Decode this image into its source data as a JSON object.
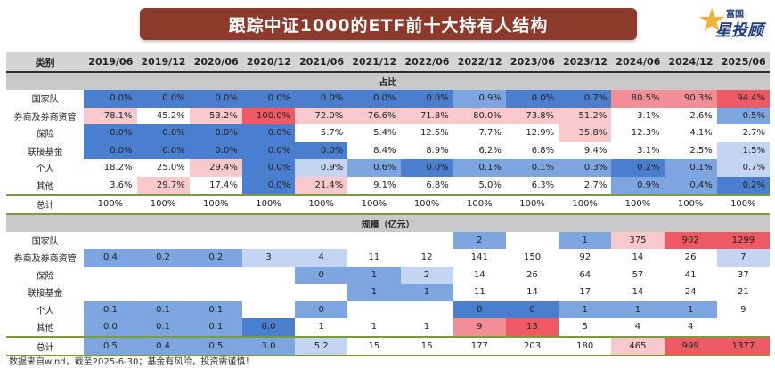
{
  "title": "跟踪中证1000的ETF前十大持有人结构",
  "logo": {
    "top": "富国",
    "main": "星投顾",
    "icon": "star-icon"
  },
  "header": {
    "label_col": "类别",
    "columns": [
      "2019/06",
      "2019/12",
      "2020/06",
      "2020/12",
      "2021/06",
      "2021/12",
      "2022/06",
      "2022/12",
      "2023/06",
      "2023/12",
      "2024/06",
      "2024/12",
      "2025/06"
    ]
  },
  "colors": {
    "blue_strong": "#4a7fd0",
    "blue_mid": "#7da6e0",
    "blue_light": "#c3d5f1",
    "white": "#ffffff",
    "red_light": "#f7c9cc",
    "red_mid": "#f28f96",
    "red_strong": "#ee5a64"
  },
  "share_section": {
    "title": "占比",
    "rows": [
      {
        "label": "国家队",
        "values": [
          "0.0%",
          "0.0%",
          "0.0%",
          "0.0%",
          "0.0%",
          "0.0%",
          "0.0%",
          "0.9%",
          "0.0%",
          "0.7%",
          "80.5%",
          "90.3%",
          "94.4%"
        ],
        "colors": [
          "blue_strong",
          "blue_strong",
          "blue_strong",
          "blue_strong",
          "blue_strong",
          "blue_strong",
          "blue_strong",
          "blue_mid",
          "blue_strong",
          "blue_strong",
          "red_mid",
          "red_mid",
          "red_strong"
        ]
      },
      {
        "label": "券商及券商资管",
        "values": [
          "78.1%",
          "45.2%",
          "53.2%",
          "100.0%",
          "72.0%",
          "76.6%",
          "71.8%",
          "80.0%",
          "73.8%",
          "51.2%",
          "3.1%",
          "2.6%",
          "0.5%"
        ],
        "colors": [
          "red_light",
          "white",
          "red_light",
          "red_strong",
          "red_light",
          "red_light",
          "red_light",
          "red_light",
          "red_light",
          "red_light",
          "white",
          "white",
          "blue_mid"
        ]
      },
      {
        "label": "保险",
        "values": [
          "0.0%",
          "0.0%",
          "0.0%",
          "0.0%",
          "5.7%",
          "5.4%",
          "12.5%",
          "7.7%",
          "12.9%",
          "35.8%",
          "12.3%",
          "4.1%",
          "2.7%"
        ],
        "colors": [
          "blue_strong",
          "blue_strong",
          "blue_strong",
          "blue_strong",
          "white",
          "white",
          "white",
          "white",
          "white",
          "red_light",
          "white",
          "white",
          "white"
        ]
      },
      {
        "label": "联接基金",
        "values": [
          "0.0%",
          "0.0%",
          "0.0%",
          "0.0%",
          "0.0%",
          "8.4%",
          "8.9%",
          "6.2%",
          "6.8%",
          "9.4%",
          "3.1%",
          "2.5%",
          "1.5%"
        ],
        "colors": [
          "blue_strong",
          "blue_strong",
          "blue_strong",
          "blue_strong",
          "blue_strong",
          "white",
          "white",
          "white",
          "white",
          "white",
          "white",
          "white",
          "blue_light"
        ]
      },
      {
        "label": "个人",
        "values": [
          "18.2%",
          "25.0%",
          "29.4%",
          "0.0%",
          "0.9%",
          "0.6%",
          "0.0%",
          "0.1%",
          "0.1%",
          "0.3%",
          "0.2%",
          "0.1%",
          "0.7%"
        ],
        "colors": [
          "white",
          "white",
          "red_light",
          "blue_strong",
          "blue_light",
          "blue_mid",
          "blue_strong",
          "blue_mid",
          "blue_mid",
          "blue_mid",
          "blue_strong",
          "blue_mid",
          "blue_light"
        ]
      },
      {
        "label": "其他",
        "values": [
          "3.6%",
          "29.7%",
          "17.4%",
          "0.0%",
          "21.4%",
          "9.1%",
          "6.8%",
          "5.0%",
          "6.3%",
          "2.7%",
          "0.9%",
          "0.4%",
          "0.2%"
        ],
        "colors": [
          "white",
          "red_light",
          "white",
          "blue_strong",
          "red_light",
          "white",
          "white",
          "white",
          "white",
          "white",
          "blue_mid",
          "blue_mid",
          "blue_strong"
        ]
      }
    ],
    "total": {
      "label": "总计",
      "values": [
        "100%",
        "100%",
        "100%",
        "100%",
        "100%",
        "100%",
        "100%",
        "100%",
        "100%",
        "100%",
        "100%",
        "100%",
        "100%"
      ]
    }
  },
  "size_section": {
    "title": "规模（亿元）",
    "rows": [
      {
        "label": "国家队",
        "values": [
          "",
          "",
          "",
          "",
          "",
          "",
          "",
          "2",
          "",
          "1",
          "375",
          "902",
          "1299"
        ],
        "colors": [
          "white",
          "white",
          "white",
          "white",
          "white",
          "white",
          "white",
          "blue_mid",
          "white",
          "blue_mid",
          "red_light",
          "red_strong",
          "red_strong"
        ]
      },
      {
        "label": "券商及券商资管",
        "values": [
          "0.4",
          "0.2",
          "0.2",
          "3",
          "4",
          "11",
          "12",
          "141",
          "150",
          "92",
          "14",
          "26",
          "7"
        ],
        "colors": [
          "blue_mid",
          "blue_mid",
          "blue_mid",
          "blue_light",
          "blue_light",
          "white",
          "white",
          "white",
          "white",
          "white",
          "white",
          "white",
          "blue_light"
        ]
      },
      {
        "label": "保险",
        "values": [
          "",
          "",
          "",
          "",
          "0",
          "1",
          "2",
          "14",
          "26",
          "64",
          "57",
          "41",
          "37"
        ],
        "colors": [
          "white",
          "white",
          "white",
          "white",
          "blue_mid",
          "blue_mid",
          "blue_light",
          "white",
          "white",
          "white",
          "white",
          "white",
          "white"
        ]
      },
      {
        "label": "联接基金",
        "values": [
          "",
          "",
          "",
          "",
          "",
          "1",
          "1",
          "11",
          "14",
          "17",
          "14",
          "24",
          "21"
        ],
        "colors": [
          "white",
          "white",
          "white",
          "white",
          "white",
          "blue_mid",
          "blue_mid",
          "white",
          "white",
          "white",
          "white",
          "white",
          "white"
        ]
      },
      {
        "label": "个人",
        "values": [
          "0.1",
          "0.1",
          "0.1",
          "",
          "0",
          "",
          "",
          "0",
          "0",
          "1",
          "1",
          "1",
          "9"
        ],
        "colors": [
          "blue_mid",
          "blue_mid",
          "blue_mid",
          "white",
          "blue_mid",
          "white",
          "white",
          "blue_strong",
          "blue_strong",
          "blue_mid",
          "blue_mid",
          "blue_mid",
          "white"
        ]
      },
      {
        "label": "其他",
        "values": [
          "0.0",
          "0.1",
          "0.1",
          "0.0",
          "1",
          "1",
          "1",
          "9",
          "13",
          "5",
          "4",
          "4",
          ""
        ],
        "colors": [
          "blue_mid",
          "blue_mid",
          "blue_mid",
          "blue_strong",
          "white",
          "white",
          "white",
          "red_mid",
          "red_strong",
          "white",
          "white",
          "white",
          "white"
        ]
      }
    ],
    "total": {
      "label": "总计",
      "values": [
        "0.5",
        "0.4",
        "0.5",
        "3.0",
        "5.2",
        "15",
        "16",
        "177",
        "203",
        "180",
        "465",
        "999",
        "1377"
      ],
      "colors": [
        "blue_mid",
        "blue_mid",
        "blue_mid",
        "blue_mid",
        "blue_light",
        "white",
        "white",
        "white",
        "white",
        "white",
        "red_light",
        "red_strong",
        "red_strong"
      ]
    }
  },
  "footnote": "数据来自wind，截至2025-6-30；基金有风险，投资需谨慎！"
}
